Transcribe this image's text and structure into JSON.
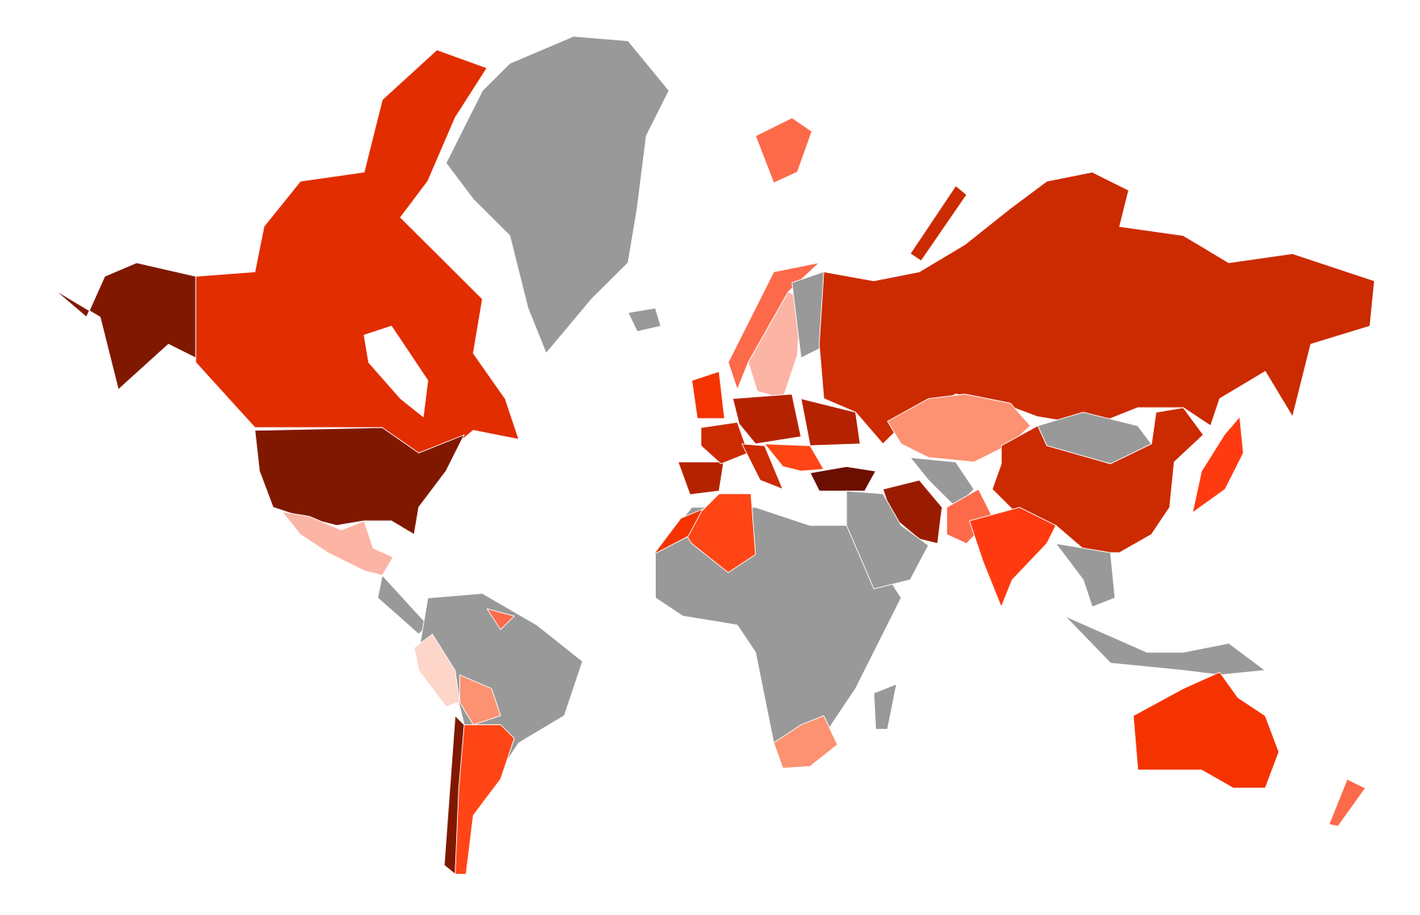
{
  "map": {
    "type": "choropleth",
    "projection": "mercator",
    "background": "#ffffff",
    "no_data_color": "#999999",
    "border_color": "#ffffff",
    "fills": {
      "greenland": "#999999",
      "canada": "#e12d00",
      "alaska": "#801800",
      "usa": "#801800",
      "mexico": "#fcb4a4",
      "central-america": "#999999",
      "south-america-other": "#999999",
      "peru": "#fdd5c9",
      "bolivia": "#fc9272",
      "chile": "#801800",
      "argentina": "#ff4515",
      "guyana": "#fc6a4a",
      "africa-other": "#999999",
      "algeria": "#ff4515",
      "morocco": "#f53300",
      "south-africa": "#fc9272",
      "madagascar": "#999999",
      "spain": "#b52200",
      "france": "#cc2a00",
      "uk": "#f53300",
      "norway": "#fc6a4a",
      "sweden": "#fcb4a4",
      "finland": "#999999",
      "central-europe": "#b52200",
      "ukraine": "#b52200",
      "italy": "#cc2a00",
      "balkans": "#ff4515",
      "russia": "#cc2a00",
      "russia-islands": "#cc2a00",
      "kazakhstan": "#fc9272",
      "mongolia": "#999999",
      "china": "#cc2a00",
      "turkey": "#6b0f00",
      "iran": "#9a1c00",
      "middle-east": "#999999",
      "central-asia": "#999999",
      "pakistan": "#fc6a4a",
      "india": "#ff3a10",
      "southeast-asia": "#999999",
      "indonesia": "#999999",
      "japan": "#ff3a10",
      "australia": "#f53300",
      "new-zealand": "#fc6a4a",
      "svalbard": "#fc6a4a",
      "iceland": "#999999"
    }
  }
}
